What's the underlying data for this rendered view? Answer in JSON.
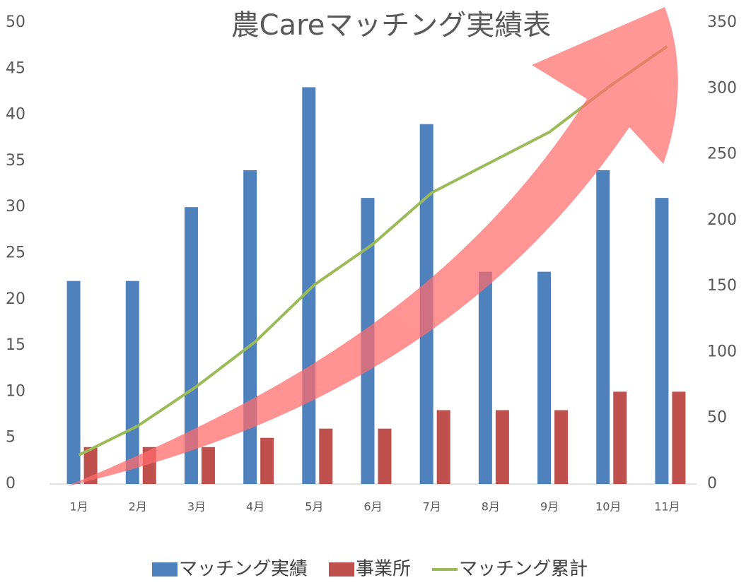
{
  "chart_data": {
    "type": "bar-line",
    "title": "農Careマッチング実績表",
    "categories": [
      "1月",
      "2月",
      "3月",
      "4月",
      "5月",
      "6月",
      "7月",
      "8月",
      "9月",
      "10月",
      "11月"
    ],
    "series": [
      {
        "name": "マッチング実績",
        "color": "#4f81bd",
        "type": "bar",
        "values": [
          22,
          22,
          30,
          34,
          43,
          31,
          39,
          23,
          23,
          34,
          31
        ]
      },
      {
        "name": "事業所",
        "color": "#c0504d",
        "type": "bar",
        "values": [
          4,
          4,
          4,
          5,
          6,
          6,
          8,
          8,
          8,
          10,
          10
        ]
      },
      {
        "name": "マッチング累計",
        "color": "#9bbb59",
        "type": "line",
        "axis": "y2",
        "values": [
          22,
          44,
          74,
          108,
          151,
          182,
          221,
          244,
          267,
          301,
          332
        ]
      }
    ],
    "ylim": [
      0,
      50
    ],
    "yticks": [
      0,
      5,
      10,
      15,
      20,
      25,
      30,
      35,
      40,
      45,
      50
    ],
    "y2lim": [
      0,
      350
    ],
    "y2ticks": [
      0,
      50,
      100,
      150,
      200,
      250,
      300,
      350
    ],
    "legend": "bottom"
  }
}
